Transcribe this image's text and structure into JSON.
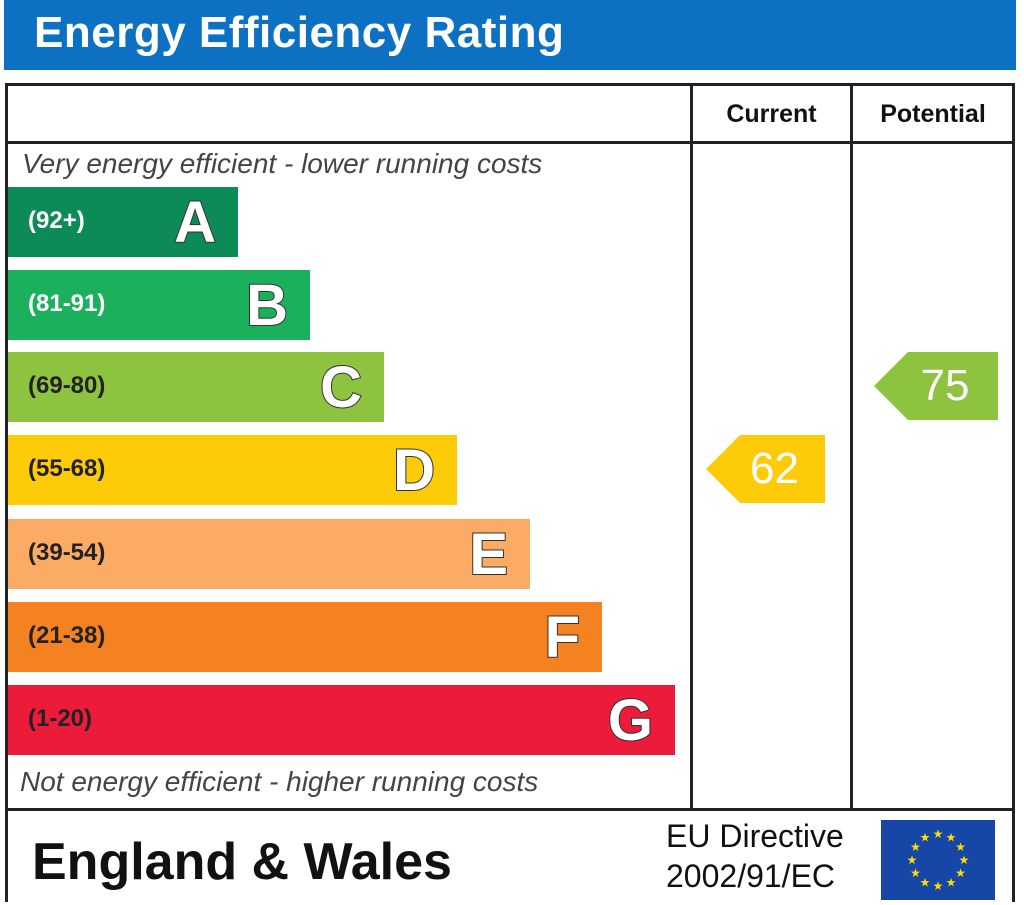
{
  "title": "Energy Efficiency Rating",
  "columns": {
    "current": "Current",
    "potential": "Potential"
  },
  "top_note": "Very energy efficient - lower running costs",
  "bottom_note": "Not energy efficient - higher running costs",
  "footer": {
    "region": "England & Wales",
    "directive_line1": "EU Directive",
    "directive_line2": "2002/91/EC"
  },
  "chart_data": {
    "type": "bar",
    "title": "Energy Efficiency Rating",
    "categories": [
      "A",
      "B",
      "C",
      "D",
      "E",
      "F",
      "G"
    ],
    "ranges": [
      "(92+)",
      "(81-91)",
      "(69-80)",
      "(55-68)",
      "(39-54)",
      "(21-38)",
      "(1-20)"
    ],
    "colors": [
      "#0c8a57",
      "#1bb15c",
      "#8dc33f",
      "#fecb09",
      "#fcab64",
      "#f48220",
      "#ec1b3a"
    ],
    "range_text_colors": [
      "#ffffff",
      "#ffffff",
      "#222222",
      "#222222",
      "#222222",
      "#222222",
      "#222222"
    ],
    "current": {
      "value": 62,
      "band": "D",
      "color": "#fecb09"
    },
    "potential": {
      "value": 75,
      "band": "C",
      "color": "#8dc33f"
    }
  }
}
